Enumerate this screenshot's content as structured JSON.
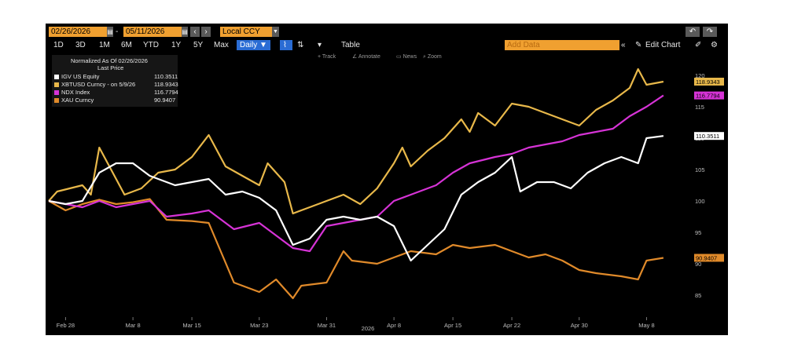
{
  "toolbar": {
    "start_date": "02/26/2026",
    "end_date": "05/11/2026",
    "currency": "Local CCY",
    "ranges": [
      "1D",
      "3D",
      "1M",
      "6M",
      "YTD",
      "1Y",
      "5Y",
      "Max"
    ],
    "frequency": "Daily ▼",
    "table_label": "Table",
    "add_data_placeholder": "Add Data",
    "edit_chart_label": "Edit Chart",
    "sub_tools": [
      "Track",
      "Annotate",
      "News",
      "Zoom"
    ]
  },
  "legend": {
    "title": "Normalized As Of 02/26/2026",
    "subtitle": "Last Price",
    "items": [
      {
        "name": "IGV US Equity",
        "value": "110.3511",
        "color": "#ffffff"
      },
      {
        "name": "XBTUSD Curncy  -  on 5/9/26",
        "value": "118.9343",
        "color": "#e8b84a"
      },
      {
        "name": "NDX Index",
        "value": "116.7794",
        "color": "#d633d6"
      },
      {
        "name": "XAU Curncy",
        "value": "90.9407",
        "color": "#e08a2a"
      }
    ]
  },
  "chart_data": {
    "type": "line",
    "xlabel": "2026",
    "x_ticks": [
      "Feb 28",
      "Mar 8",
      "Mar 15",
      "Mar 23",
      "Mar 31",
      "Apr 8",
      "Apr 15",
      "Apr 22",
      "Apr 30",
      "May 8"
    ],
    "x_tick_dates": [
      "2026-02-28",
      "2026-03-08",
      "2026-03-15",
      "2026-03-23",
      "2026-03-31",
      "2026-04-08",
      "2026-04-15",
      "2026-04-22",
      "2026-04-30",
      "2026-05-08"
    ],
    "y_ticks": [
      85,
      90,
      95,
      100,
      105,
      110,
      115,
      120
    ],
    "ylim": [
      81,
      122
    ],
    "series": [
      {
        "name": "XAU Curncy",
        "color": "#e08a2a",
        "last_label": "90.9407",
        "points": [
          [
            "2026-02-26",
            100
          ],
          [
            "2026-02-28",
            98.5
          ],
          [
            "2026-03-02",
            99.5
          ],
          [
            "2026-03-04",
            100.2
          ],
          [
            "2026-03-06",
            99.5
          ],
          [
            "2026-03-08",
            99.8
          ],
          [
            "2026-03-10",
            100.3
          ],
          [
            "2026-03-12",
            97
          ],
          [
            "2026-03-15",
            96.8
          ],
          [
            "2026-03-17",
            96.5
          ],
          [
            "2026-03-20",
            87
          ],
          [
            "2026-03-23",
            85.5
          ],
          [
            "2026-03-25",
            87.5
          ],
          [
            "2026-03-27",
            84.5
          ],
          [
            "2026-03-28",
            86.5
          ],
          [
            "2026-03-31",
            87
          ],
          [
            "2026-04-02",
            92
          ],
          [
            "2026-04-03",
            90.5
          ],
          [
            "2026-04-06",
            90
          ],
          [
            "2026-04-08",
            91
          ],
          [
            "2026-04-10",
            92
          ],
          [
            "2026-04-13",
            91.5
          ],
          [
            "2026-04-15",
            93
          ],
          [
            "2026-04-17",
            92.5
          ],
          [
            "2026-04-20",
            93
          ],
          [
            "2026-04-22",
            92
          ],
          [
            "2026-04-24",
            91
          ],
          [
            "2026-04-26",
            91.5
          ],
          [
            "2026-04-28",
            90.5
          ],
          [
            "2026-04-30",
            89
          ],
          [
            "2026-05-02",
            88.5
          ],
          [
            "2026-05-05",
            88
          ],
          [
            "2026-05-07",
            87.5
          ],
          [
            "2026-05-08",
            90.5
          ],
          [
            "2026-05-10",
            90.94
          ]
        ]
      },
      {
        "name": "XBTUSD Curncy",
        "color": "#e8b84a",
        "last_label": "118.9343",
        "points": [
          [
            "2026-02-26",
            100
          ],
          [
            "2026-02-27",
            101.5
          ],
          [
            "2026-03-02",
            102.5
          ],
          [
            "2026-03-03",
            101
          ],
          [
            "2026-03-04",
            108.5
          ],
          [
            "2026-03-05",
            106
          ],
          [
            "2026-03-07",
            101
          ],
          [
            "2026-03-09",
            102
          ],
          [
            "2026-03-11",
            104.5
          ],
          [
            "2026-03-13",
            105
          ],
          [
            "2026-03-15",
            107
          ],
          [
            "2026-03-17",
            110.5
          ],
          [
            "2026-03-19",
            105.5
          ],
          [
            "2026-03-21",
            104
          ],
          [
            "2026-03-23",
            102.5
          ],
          [
            "2026-03-24",
            106
          ],
          [
            "2026-03-26",
            103
          ],
          [
            "2026-03-27",
            98
          ],
          [
            "2026-03-29",
            99
          ],
          [
            "2026-03-31",
            100
          ],
          [
            "2026-04-02",
            101
          ],
          [
            "2026-04-04",
            99.5
          ],
          [
            "2026-04-06",
            102
          ],
          [
            "2026-04-08",
            106
          ],
          [
            "2026-04-09",
            108.5
          ],
          [
            "2026-04-10",
            105.5
          ],
          [
            "2026-04-12",
            108
          ],
          [
            "2026-04-14",
            110
          ],
          [
            "2026-04-16",
            113
          ],
          [
            "2026-04-17",
            111
          ],
          [
            "2026-04-18",
            114
          ],
          [
            "2026-04-20",
            112
          ],
          [
            "2026-04-22",
            115.5
          ],
          [
            "2026-04-24",
            115
          ],
          [
            "2026-04-26",
            114
          ],
          [
            "2026-04-28",
            113
          ],
          [
            "2026-04-30",
            112
          ],
          [
            "2026-05-02",
            114.5
          ],
          [
            "2026-05-04",
            116
          ],
          [
            "2026-05-06",
            118
          ],
          [
            "2026-05-07",
            121
          ],
          [
            "2026-05-08",
            118.5
          ],
          [
            "2026-05-10",
            119
          ]
        ]
      },
      {
        "name": "NDX Index",
        "color": "#d633d6",
        "last_label": "116.7794",
        "points": [
          [
            "2026-02-26",
            100
          ],
          [
            "2026-02-28",
            99.5
          ],
          [
            "2026-03-02",
            99
          ],
          [
            "2026-03-04",
            100
          ],
          [
            "2026-03-06",
            99
          ],
          [
            "2026-03-08",
            99.5
          ],
          [
            "2026-03-10",
            100
          ],
          [
            "2026-03-12",
            97.5
          ],
          [
            "2026-03-15",
            98
          ],
          [
            "2026-03-17",
            98.5
          ],
          [
            "2026-03-20",
            95.5
          ],
          [
            "2026-03-23",
            96.5
          ],
          [
            "2026-03-25",
            94.5
          ],
          [
            "2026-03-27",
            92.5
          ],
          [
            "2026-03-29",
            92
          ],
          [
            "2026-03-31",
            96
          ],
          [
            "2026-04-02",
            96.5
          ],
          [
            "2026-04-04",
            97
          ],
          [
            "2026-04-06",
            97.5
          ],
          [
            "2026-04-08",
            100
          ],
          [
            "2026-04-10",
            101
          ],
          [
            "2026-04-13",
            102.5
          ],
          [
            "2026-04-15",
            104.5
          ],
          [
            "2026-04-17",
            106
          ],
          [
            "2026-04-20",
            107
          ],
          [
            "2026-04-22",
            107.5
          ],
          [
            "2026-04-24",
            108.5
          ],
          [
            "2026-04-26",
            109
          ],
          [
            "2026-04-28",
            109.5
          ],
          [
            "2026-04-30",
            110.5
          ],
          [
            "2026-05-02",
            111
          ],
          [
            "2026-05-04",
            111.5
          ],
          [
            "2026-05-06",
            113.5
          ],
          [
            "2026-05-08",
            115
          ],
          [
            "2026-05-10",
            116.8
          ]
        ]
      },
      {
        "name": "IGV US Equity",
        "color": "#ffffff",
        "last_label": "110.3511",
        "points": [
          [
            "2026-02-26",
            100
          ],
          [
            "2026-02-28",
            99.5
          ],
          [
            "2026-03-02",
            100
          ],
          [
            "2026-03-04",
            104.5
          ],
          [
            "2026-03-06",
            106
          ],
          [
            "2026-03-08",
            106
          ],
          [
            "2026-03-10",
            104
          ],
          [
            "2026-03-13",
            102.5
          ],
          [
            "2026-03-15",
            103
          ],
          [
            "2026-03-17",
            103.5
          ],
          [
            "2026-03-19",
            101
          ],
          [
            "2026-03-21",
            101.5
          ],
          [
            "2026-03-23",
            100.5
          ],
          [
            "2026-03-25",
            98.5
          ],
          [
            "2026-03-27",
            93
          ],
          [
            "2026-03-29",
            94
          ],
          [
            "2026-03-31",
            97
          ],
          [
            "2026-04-02",
            97.5
          ],
          [
            "2026-04-04",
            97
          ],
          [
            "2026-04-06",
            97.5
          ],
          [
            "2026-04-08",
            96
          ],
          [
            "2026-04-10",
            90.5
          ],
          [
            "2026-04-12",
            93
          ],
          [
            "2026-04-14",
            95.5
          ],
          [
            "2026-04-16",
            101
          ],
          [
            "2026-04-18",
            103
          ],
          [
            "2026-04-20",
            104.5
          ],
          [
            "2026-04-22",
            107
          ],
          [
            "2026-04-23",
            101.5
          ],
          [
            "2026-04-25",
            103
          ],
          [
            "2026-04-27",
            103
          ],
          [
            "2026-04-29",
            102
          ],
          [
            "2026-05-01",
            104.5
          ],
          [
            "2026-05-03",
            106
          ],
          [
            "2026-05-05",
            107
          ],
          [
            "2026-05-07",
            106
          ],
          [
            "2026-05-08",
            110
          ],
          [
            "2026-05-10",
            110.35
          ]
        ]
      }
    ]
  }
}
